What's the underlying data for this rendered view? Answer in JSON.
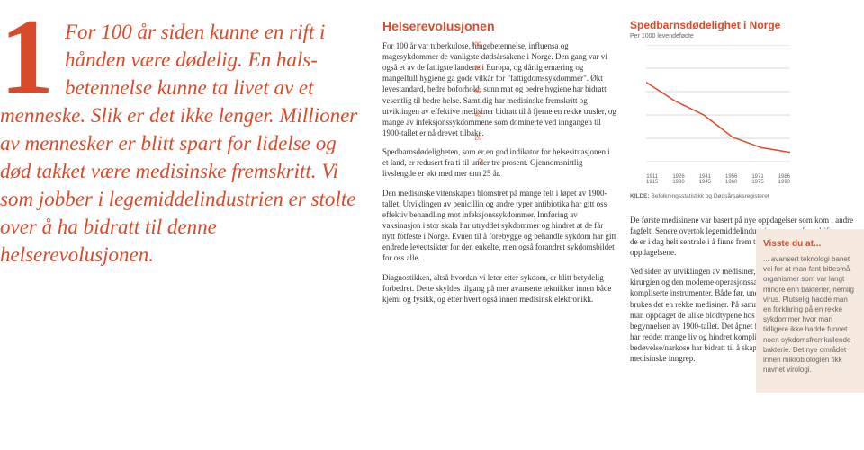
{
  "intro": {
    "number": "1",
    "text": "For 100 år siden kunne en rift i hånden være dødelig. En hals­betennelse kunne ta livet av et menneske. Slik er det ikke lenger. Millioner av mennesker er blitt spart for lidelse og død takket være medisinske fremskritt. Vi som jobber i legemiddel­industrien er stolte over å ha bidratt til denne helserevolusjonen."
  },
  "body": {
    "heading": "Helserevolusjonen",
    "p1": "For 100 år var tuberkulose, lungebetennelse, influensa og magesykdommer de vanligste dødsårsakene i Norge. Den gang var vi også et av de fattigste landene i Europa, og dårlig ernæring og mangelfull hygiene ga gode vilkår for \"fattigdomssykdommer\". Økt levestandard, bedre boforhold, sunn mat og bedre hygiene har bidratt vesentlig til bedre helse. Samtidig har medisinske fremskritt og utviklingen av effektive medisiner bidratt til å fjerne en rekke trusler, og mange av infeksjonssykdommene som dominerte ved inngangen til 1900-tallet er nå drevet tilbake.",
    "p2": "Spedbarnsdødeligheten, som er en god indikator for helsesituasjonen i et land, er redusert fra ti til under tre prosent. Gjennomsnittlig livslengde er økt med mer enn 25 år.",
    "p3": "Den medisinske vitenskapen blomstret på mange felt i løpet av 1900-tallet. Utviklingen av penicillin og andre typer antibiotika har gitt oss effektiv behandling mot infeksjonssykdommer. Innføring av vaksinasjon i stor skala har utryddet sykdommer og hindret at de får nytt fotfeste i Norge. Evnen til å forebygge og behandle sykdom har gitt endrede leveutsikter for den enkelte, men også forandret sykdomsbildet for oss alle.",
    "p4": "Diagnostikken, altså hvordan vi leter etter sykdom, er blitt betydelig forbedret. Dette skyldes tilgang på mer avanserte teknikker innen både kjemi og fysikk, og etter hvert også innen medisinsk elektronikk."
  },
  "chart": {
    "title": "Spedbarnsdødelighet i Norge",
    "subtitle": "Per 1000 levendefødte",
    "y_ticks": [
      0,
      20,
      40,
      60,
      80,
      100
    ],
    "x_labels": [
      "1911 - 1915",
      "1926 - 1930",
      "1941 - 1945",
      "1956 - 1960",
      "1971 - 1975",
      "1986 - 1990"
    ],
    "values": [
      68,
      52,
      40,
      21,
      12,
      8
    ],
    "width": 160,
    "height": 130,
    "line_color": "#d84b2a",
    "grid_color": "#b8b0a8",
    "source_label": "KILDE:",
    "source_text": "Befolkningsstatistikk og Dødsårsaksregisteret"
  },
  "right_body": {
    "p1": "De første medisinene var basert på nye oppdagelser som kom i andre fagfelt. Senere overtok legemiddelindustrien mye av fremdriften, og de er i dag helt sentrale i å finne frem til de medisinske oppdagelsene.",
    "p2": "Ved siden av utviklingen av medisiner, hjalp teknologien frem kirurgien og den moderne operasjonssal som er avhengig av kompliserte instrumenter. Både før, under og etter en operasjon brukes det en rekke medisiner. På samme måte var det en milepæl da man oppdaget de ulike blodtypene hos mennesket helt på begynnelsen av 1900-tallet. Det åpnet for sikre blodoverføringer som har reddet mange liv og hindret komplikasjoner. Nye metoder innen bedøvelse/narkose har bidratt til å skape større muligheter for medisinske inngrep."
  },
  "sidebar": {
    "heading": "Visste du at...",
    "text": "... avansert teknologi banet vei for at man fant bittesmå organismer som var langt mindre enn bakterier, nemlig virus. Plutselig hadde man en forklaring på en rekke sykdommer hvor man tidligere ikke hadde funnet noen sykdomsfremkallende bakterie. Det nye området innen mikrobiologien fikk navnet virologi."
  }
}
